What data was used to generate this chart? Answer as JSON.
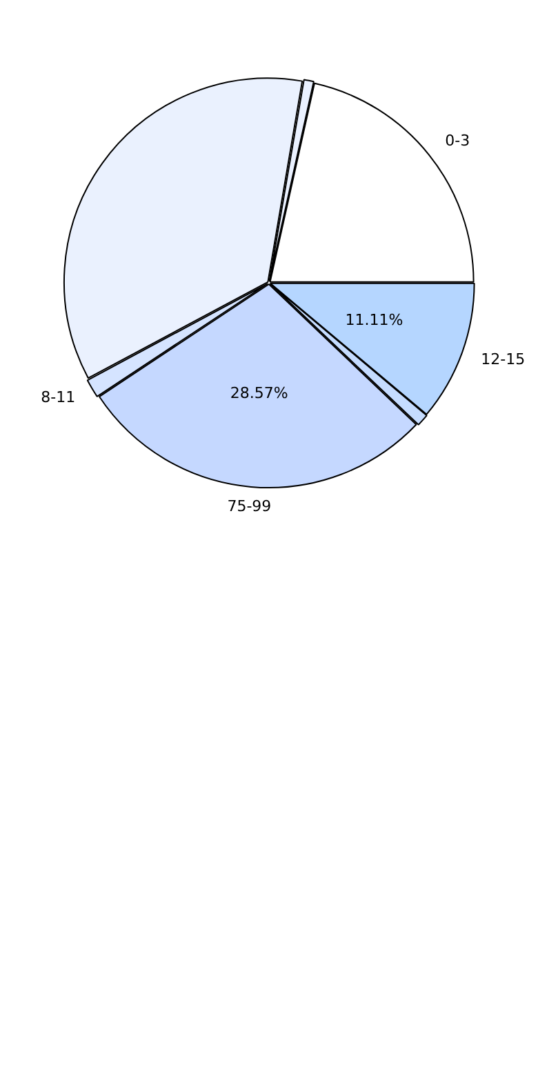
{
  "chart_data": {
    "type": "pie",
    "categories": [
      "12-15",
      null,
      "75-99",
      "8-11",
      null,
      null,
      "0-3"
    ],
    "values": [
      11.11,
      1.0,
      28.57,
      1.5,
      35.52,
      0.8,
      21.5
    ],
    "colors": [
      "#b5d6ff",
      "#c5dcff",
      "#c5d8ff",
      "#d5e4ff",
      "#eaf1fe",
      "#eaf1ff",
      "#ffffff"
    ],
    "value_labels": [
      "11.11%",
      null,
      "28.57%",
      null,
      null,
      null,
      null
    ],
    "legend": false
  }
}
